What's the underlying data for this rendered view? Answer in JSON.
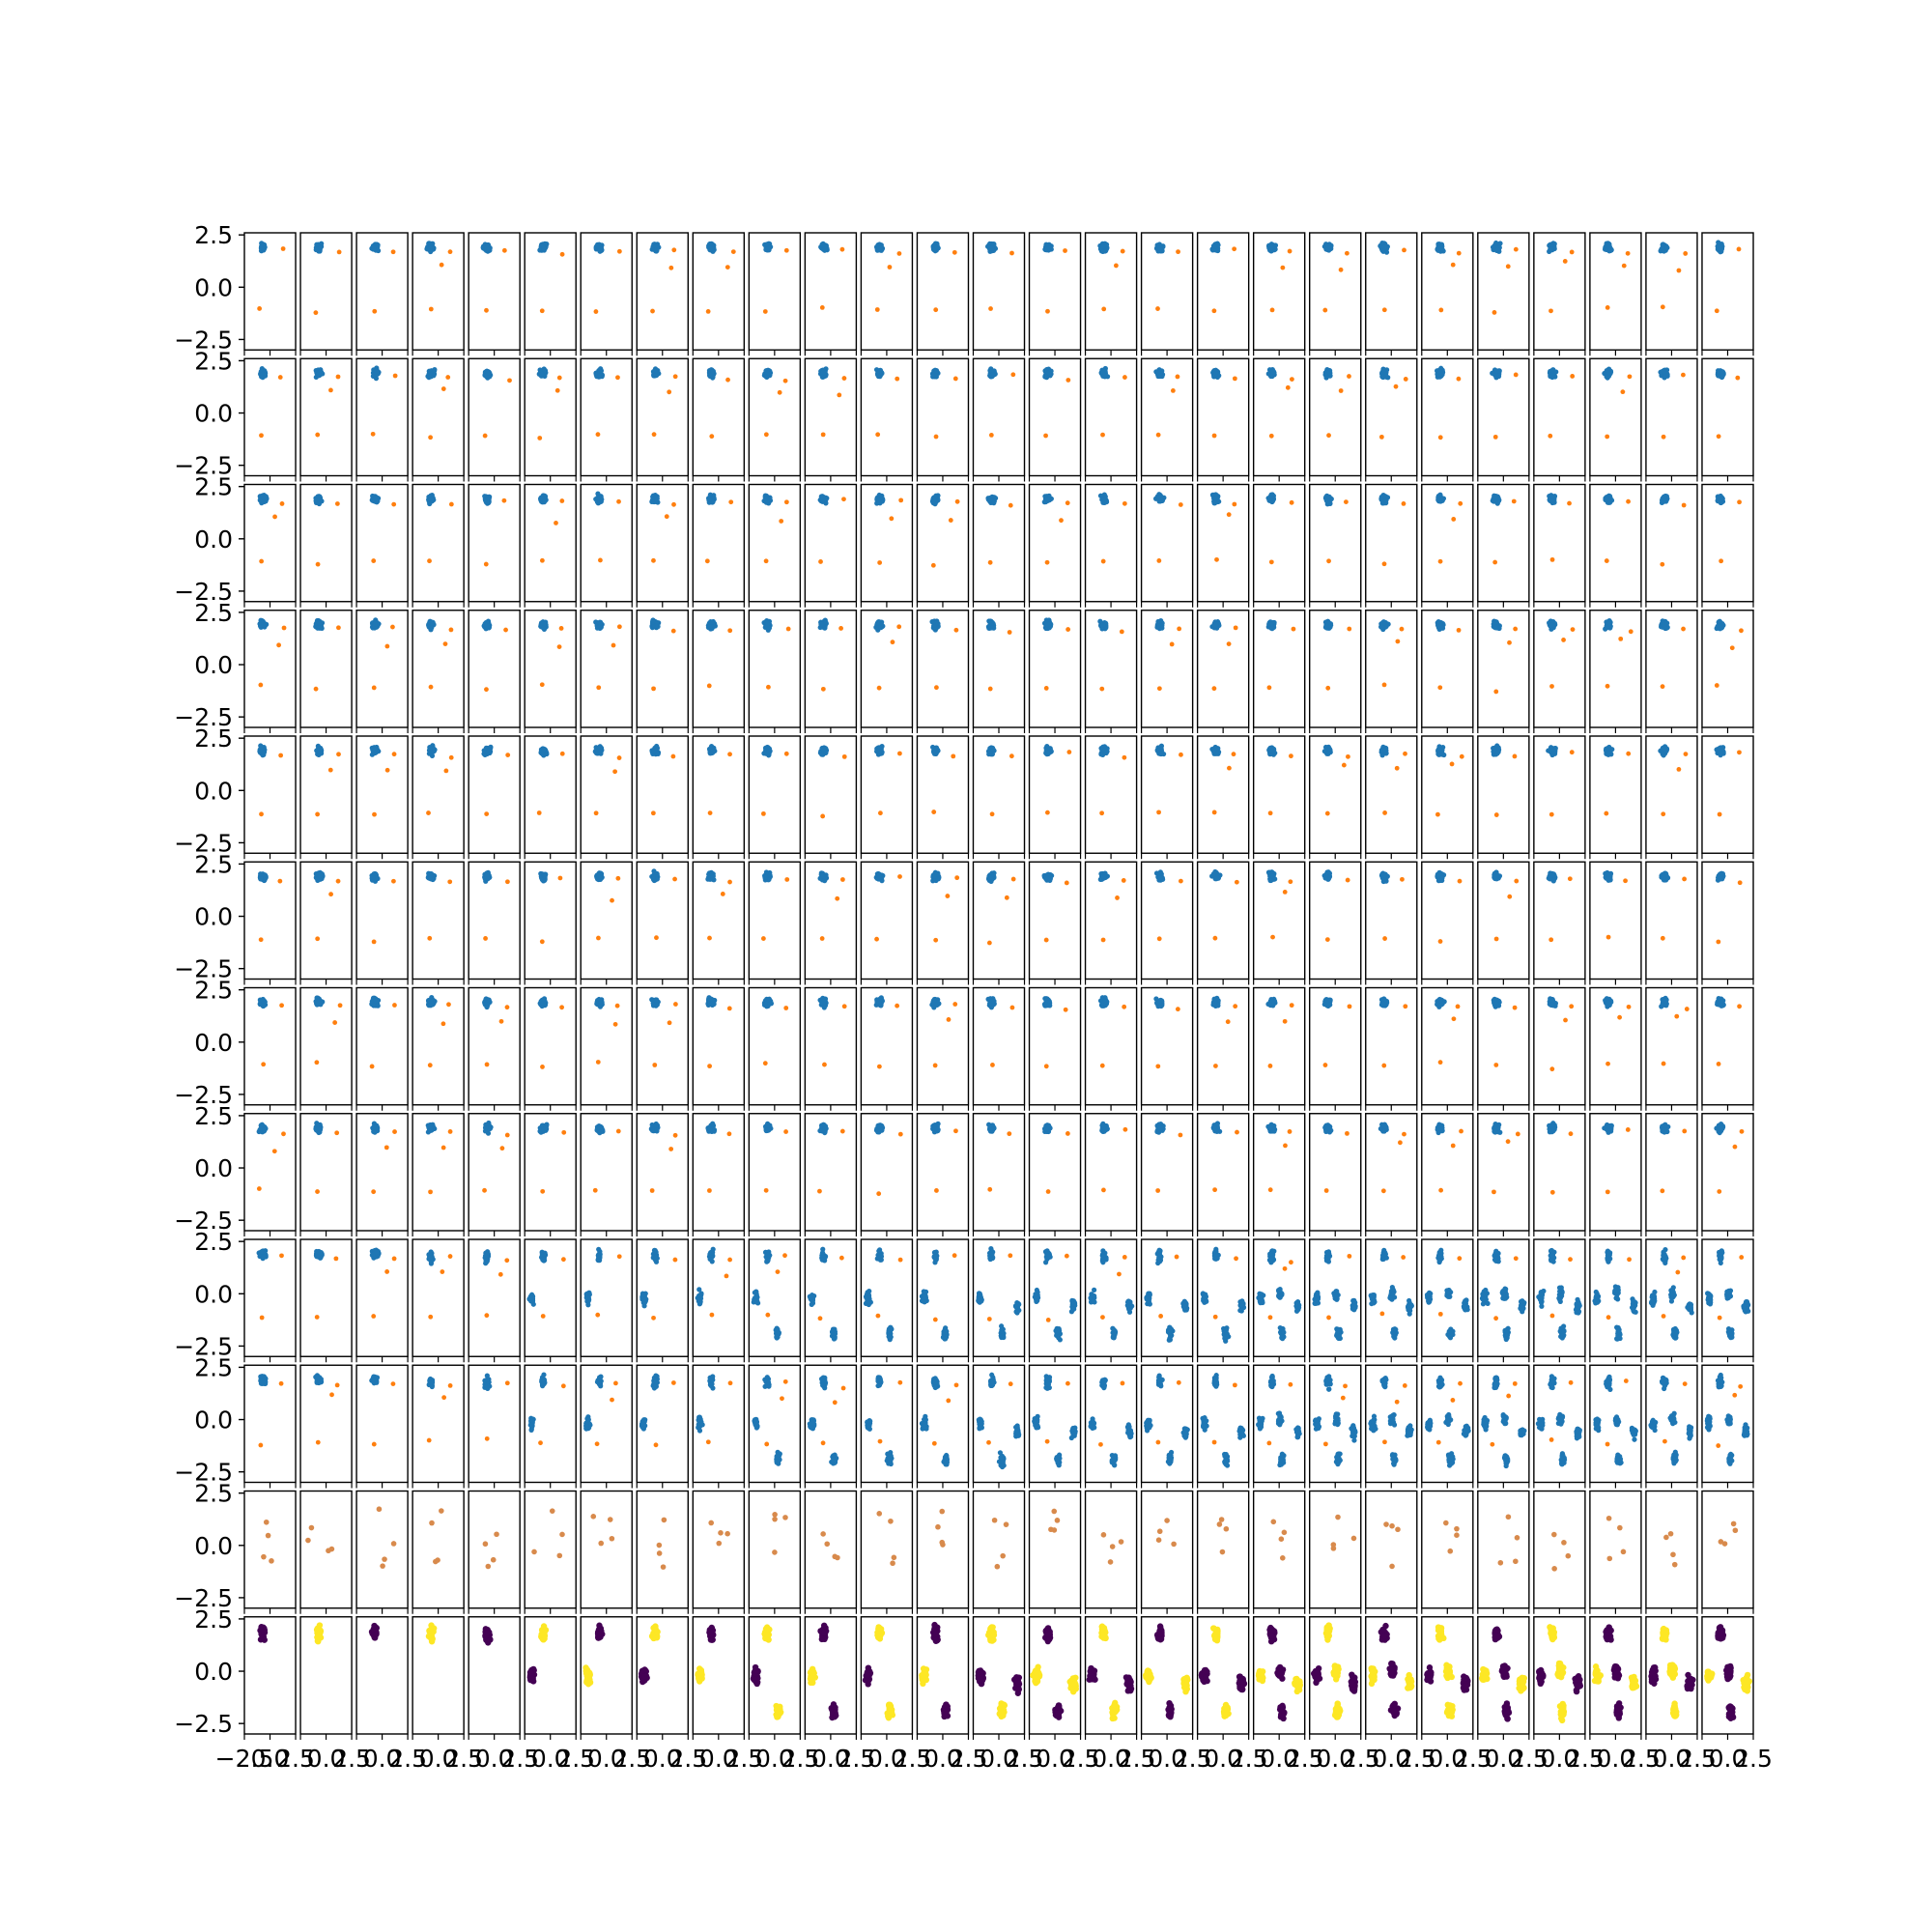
{
  "chart_data": {
    "type": "scatter",
    "layout": "small-multiples grid",
    "rows": 12,
    "cols": 27,
    "shared_ylim": [
      -3.0,
      2.6
    ],
    "shared_xlim": [
      -2.5,
      2.5
    ],
    "grid": false,
    "legend": "none",
    "title": "",
    "xlabel": "",
    "ylabel": "",
    "yticks": [
      2.5,
      0.0,
      -2.5
    ],
    "ytick_labels": [
      "2.5",
      "0.0",
      "−2.5"
    ],
    "bottom_xtick_labels": [
      "−2.5",
      "0.0",
      "2.5"
    ],
    "row_styles": [
      "blue+orange",
      "blue+orange",
      "blue+orange",
      "blue+orange",
      "blue+orange",
      "blue+orange",
      "blue+orange",
      "blue+orange",
      "blue+orange",
      "blue+orange",
      "orange",
      "purple+yellow"
    ],
    "colors": {
      "blue": "#1f77b4",
      "orange": "#ff7f0e",
      "orange_faded": "#d88a4c",
      "purple": "#440154",
      "yellow": "#fde725",
      "axes": "#000000",
      "background": "#ffffff"
    },
    "typical_clusters": {
      "main_blue_cluster": {
        "x": -0.7,
        "y": 1.9
      },
      "orange_points": [
        {
          "x": 1.2,
          "y": 1.7
        },
        {
          "x": -0.8,
          "y": -1.1
        }
      ]
    },
    "late_columns_clusters": [
      {
        "x": -0.7,
        "y": 1.8
      },
      {
        "x": -1.8,
        "y": -0.2
      },
      {
        "x": 0.3,
        "y": -1.9
      },
      {
        "x": 1.8,
        "y": -0.6
      },
      {
        "x": 0.1,
        "y": 0.0
      }
    ]
  }
}
